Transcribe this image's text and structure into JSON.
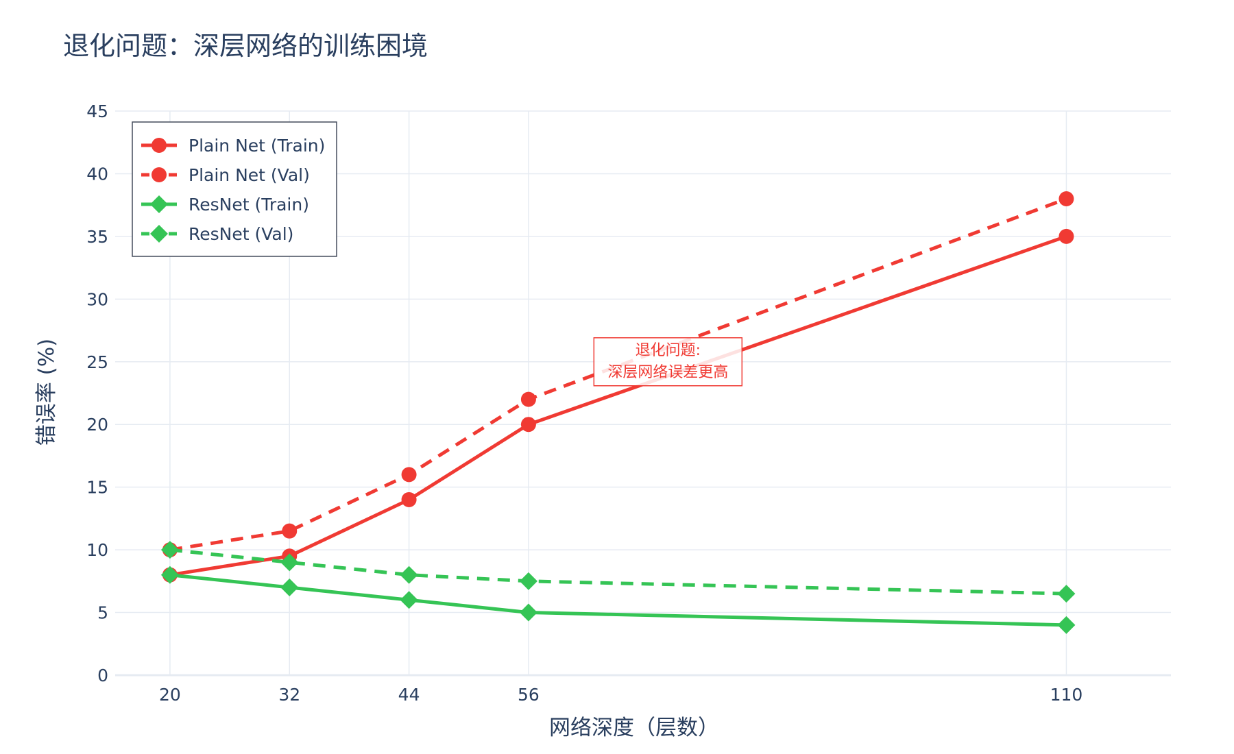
{
  "chart_data": {
    "type": "line",
    "title": "退化问题：深层网络的训练困境",
    "xlabel": "网络深度（层数）",
    "ylabel": "错误率 (%)",
    "x": [
      20,
      32,
      44,
      56,
      110
    ],
    "xticks": [
      "20",
      "32",
      "44",
      "56",
      "110"
    ],
    "xlim": [
      14.5,
      120.5
    ],
    "ylim": [
      0,
      45
    ],
    "yticks": [
      "0",
      "5",
      "10",
      "15",
      "20",
      "25",
      "30",
      "35",
      "40",
      "45"
    ],
    "grid": true,
    "legend_position": "top-left",
    "series": [
      {
        "name": "Plain Net (Train)",
        "values": [
          8,
          9.5,
          14,
          20,
          35
        ],
        "color": "#f03a33",
        "dash": "solid",
        "marker": "circle"
      },
      {
        "name": "Plain Net (Val)",
        "values": [
          10,
          11.5,
          16,
          22,
          38
        ],
        "color": "#f03a33",
        "dash": "dash",
        "marker": "circle"
      },
      {
        "name": "ResNet (Train)",
        "values": [
          8,
          7,
          6,
          5,
          4
        ],
        "color": "#35c455",
        "dash": "solid",
        "marker": "diamond"
      },
      {
        "name": "ResNet (Val)",
        "values": [
          10,
          9,
          8,
          7.5,
          6.5
        ],
        "color": "#35c455",
        "dash": "dash",
        "marker": "diamond"
      }
    ],
    "annotations": [
      {
        "lines": [
          "退化问题:",
          "深层网络误差更高"
        ],
        "x": 70,
        "y": 25,
        "color": "#f03a33"
      }
    ]
  }
}
